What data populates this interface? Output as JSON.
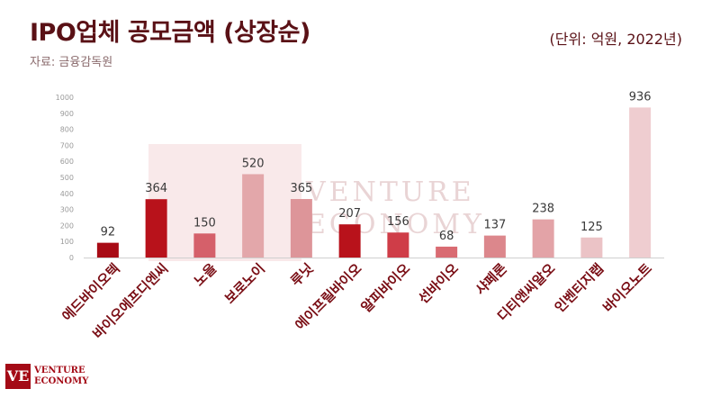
{
  "header": {
    "title": "IPO업체 공모금액 (상장순)",
    "source": "자료: 금융감독원",
    "unit": "(단위: 억원, 2022년)"
  },
  "watermark": {
    "text_1": "VENTURE",
    "text_2": "ECONOMY"
  },
  "logo": {
    "mark": "VE",
    "line_1": "VENTURE",
    "line_2": "ECONOMY"
  },
  "chart_data": {
    "type": "bar",
    "categories": [
      "에드바이오텍",
      "바이오에프디엔씨",
      "노을",
      "보로노이",
      "루닛",
      "에이프릴바이오",
      "알피바이오",
      "선바이오",
      "샤페론",
      "디티앤씨알오",
      "인벤티지랩",
      "바이오노트"
    ],
    "values": [
      92,
      364,
      150,
      520,
      365,
      207,
      156,
      68,
      137,
      238,
      125,
      936
    ],
    "colors": [
      "#a80b15",
      "#b8121b",
      "#d5606a",
      "#e3a7aa",
      "#dd9599",
      "#b8121b",
      "#cf3d48",
      "#d96b72",
      "#dc878c",
      "#e3a3a7",
      "#ebc3c6",
      "#efcdd0"
    ],
    "ylim": [
      0,
      1000
    ],
    "yticks": [
      0,
      100,
      200,
      300,
      400,
      500,
      600,
      700,
      800,
      900,
      1000
    ],
    "grid": false
  }
}
